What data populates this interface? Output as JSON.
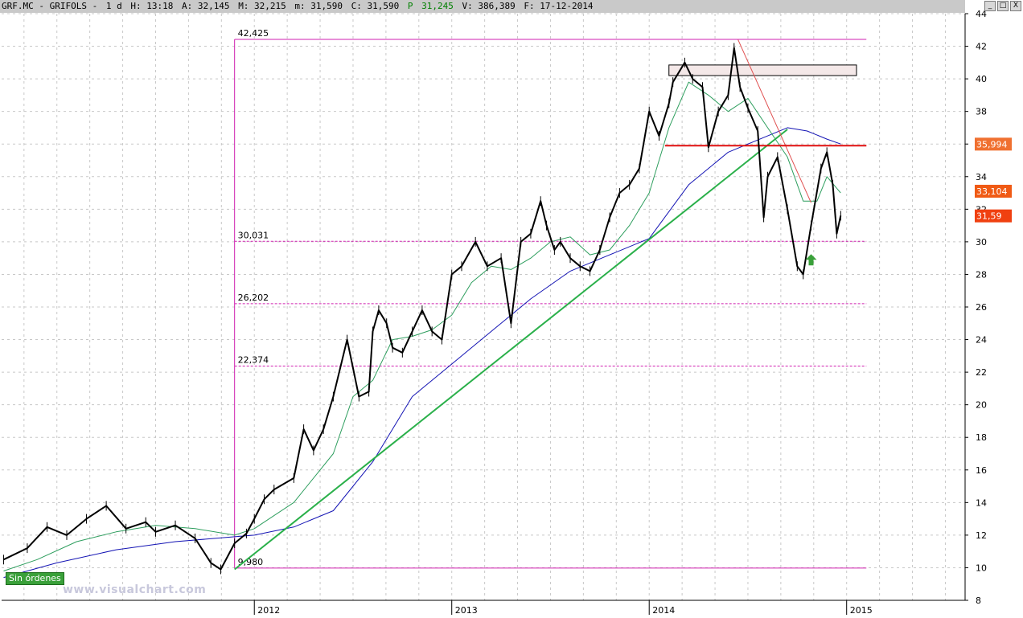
{
  "header": {
    "ticker": "GRF.MC - GRIFOLS -",
    "period": "1 d",
    "h_label": "H: 13:18",
    "a_label": "A: 32,145",
    "m_label": "M: 32,215",
    "min_label": "m: 31,590",
    "c_label": "C: 31,590",
    "p_label": "P",
    "p_value": "31,245",
    "v_label": "V: 386,389",
    "f_label": "F: 17-12-2014"
  },
  "window_controls": {
    "minimize": "_",
    "restore": "□",
    "close": "X"
  },
  "badge": "Sin órdenes",
  "watermark": "www.visualchart.com",
  "chart_data": {
    "type": "line",
    "title": "",
    "xlabel": "",
    "ylabel": "",
    "x_tick_labels": [
      "2012",
      "2013",
      "2014",
      "2015"
    ],
    "x_range": [
      2010.72,
      2015.6
    ],
    "ylim": [
      8,
      44
    ],
    "y_tick_labels": [
      8,
      10,
      12,
      14,
      16,
      18,
      20,
      22,
      24,
      26,
      28,
      30,
      32,
      34,
      36,
      38,
      40,
      42,
      44
    ],
    "grid": true,
    "series": [
      {
        "role": "price",
        "color": "#000000",
        "x": [
          2010.73,
          2010.85,
          2010.95,
          2011.05,
          2011.15,
          2011.25,
          2011.35,
          2011.45,
          2011.5,
          2011.6,
          2011.7,
          2011.78,
          2011.83,
          2011.9,
          2011.96,
          2012.0,
          2012.05,
          2012.1,
          2012.2,
          2012.25,
          2012.3,
          2012.35,
          2012.4,
          2012.47,
          2012.53,
          2012.58,
          2012.6,
          2012.63,
          2012.67,
          2012.7,
          2012.75,
          2012.8,
          2012.85,
          2012.9,
          2012.95,
          2013.0,
          2013.05,
          2013.12,
          2013.18,
          2013.25,
          2013.3,
          2013.35,
          2013.4,
          2013.45,
          2013.48,
          2013.52,
          2013.55,
          2013.6,
          2013.65,
          2013.7,
          2013.75,
          2013.8,
          2013.85,
          2013.9,
          2013.95,
          2014.0,
          2014.05,
          2014.1,
          2014.12,
          2014.18,
          2014.22,
          2014.27,
          2014.3,
          2014.35,
          2014.4,
          2014.43,
          2014.46,
          2014.5,
          2014.55,
          2014.58,
          2014.6,
          2014.65,
          2014.7,
          2014.75,
          2014.78,
          2014.82,
          2014.87,
          2014.9,
          2014.93,
          2014.95,
          2014.97
        ],
        "values": [
          10.5,
          11.2,
          12.5,
          12.0,
          13.0,
          13.8,
          12.4,
          12.8,
          12.2,
          12.6,
          11.8,
          10.3,
          9.9,
          11.5,
          12.1,
          13.0,
          14.2,
          14.8,
          15.5,
          18.5,
          17.2,
          18.5,
          20.5,
          24.0,
          20.5,
          20.8,
          24.5,
          25.8,
          25.0,
          23.5,
          23.2,
          24.5,
          25.8,
          24.5,
          24.0,
          28.0,
          28.5,
          30.0,
          28.5,
          29.0,
          25.0,
          30.0,
          30.5,
          32.5,
          31.0,
          29.5,
          30.0,
          29.0,
          28.5,
          28.2,
          29.5,
          31.5,
          33.0,
          33.5,
          34.5,
          38.0,
          36.5,
          38.5,
          39.8,
          41.0,
          40.0,
          39.5,
          35.8,
          38.0,
          39.0,
          41.9,
          39.5,
          38.2,
          36.8,
          31.5,
          34.0,
          35.2,
          32.0,
          28.5,
          28.0,
          31.0,
          34.5,
          35.5,
          33.5,
          30.5,
          31.6
        ]
      },
      {
        "role": "short-moving-average",
        "color": "#2e9e5e",
        "x": [
          2010.73,
          2010.9,
          2011.1,
          2011.3,
          2011.5,
          2011.7,
          2011.9,
          2012.0,
          2012.2,
          2012.4,
          2012.5,
          2012.6,
          2012.7,
          2012.8,
          2012.9,
          2013.0,
          2013.1,
          2013.2,
          2013.3,
          2013.4,
          2013.5,
          2013.6,
          2013.7,
          2013.8,
          2013.9,
          2014.0,
          2014.1,
          2014.2,
          2014.3,
          2014.4,
          2014.5,
          2014.6,
          2014.7,
          2014.78,
          2014.85,
          2014.9,
          2014.97
        ],
        "values": [
          9.8,
          10.5,
          11.6,
          12.2,
          12.6,
          12.4,
          12.0,
          12.4,
          14.0,
          17.0,
          20.5,
          21.5,
          24.0,
          24.2,
          24.6,
          25.5,
          27.5,
          28.5,
          28.3,
          29.0,
          30.0,
          30.3,
          29.2,
          29.5,
          31.0,
          33.0,
          37.0,
          39.8,
          39.0,
          38.0,
          38.8,
          37.0,
          35.2,
          32.5,
          32.5,
          34.0,
          33.0
        ]
      },
      {
        "role": "long-moving-average",
        "color": "#1414b4",
        "x": [
          2010.73,
          2011.0,
          2011.3,
          2011.6,
          2011.9,
          2012.0,
          2012.2,
          2012.4,
          2012.6,
          2012.8,
          2013.0,
          2013.2,
          2013.4,
          2013.6,
          2013.8,
          2014.0,
          2014.2,
          2014.4,
          2014.6,
          2014.7,
          2014.8,
          2014.9,
          2014.97
        ],
        "values": [
          9.4,
          10.3,
          11.1,
          11.6,
          11.9,
          12.0,
          12.5,
          13.5,
          16.5,
          20.5,
          22.5,
          24.5,
          26.5,
          28.2,
          29.2,
          30.2,
          33.5,
          35.5,
          36.5,
          37.0,
          36.8,
          36.3,
          36.0
        ]
      },
      {
        "role": "trendline",
        "color": "#2ab04a",
        "x": [
          2011.9,
          2014.7
        ],
        "values": [
          9.9,
          36.9
        ]
      },
      {
        "role": "trendline",
        "color": "#e05050",
        "x": [
          2014.45,
          2014.82
        ],
        "values": [
          42.4,
          32.4
        ]
      },
      {
        "role": "resistance-level",
        "color": "#e01010",
        "x": [
          2014.08,
          2015.1
        ],
        "values": [
          35.9,
          35.9
        ]
      }
    ],
    "horizontal_levels": [
      {
        "value": 42.425,
        "label": "42,425",
        "style": "solid"
      },
      {
        "value": 30.031,
        "label": "30,031",
        "style": "dashed"
      },
      {
        "value": 26.202,
        "label": "26,202",
        "style": "dashed"
      },
      {
        "value": 22.374,
        "label": "22,374",
        "style": "dashed"
      },
      {
        "value": 9.98,
        "label": "9,980",
        "style": "solid"
      }
    ],
    "fib_anchor_x": 2011.9,
    "level_x_end": 2015.1,
    "resistance_box": {
      "x": [
        2014.1,
        2015.05
      ],
      "y": [
        40.2,
        40.85
      ]
    },
    "arrow_marker": {
      "x": 2014.82,
      "y": 28.9,
      "color": "#3aa03a"
    },
    "price_labels": [
      {
        "value": 35.994,
        "label": "35,994",
        "color": "#f07030"
      },
      {
        "value": 33.104,
        "label": "33,104",
        "color": "#f05a14"
      },
      {
        "value": 31.59,
        "label": "31,59",
        "color": "#f04010"
      }
    ]
  }
}
